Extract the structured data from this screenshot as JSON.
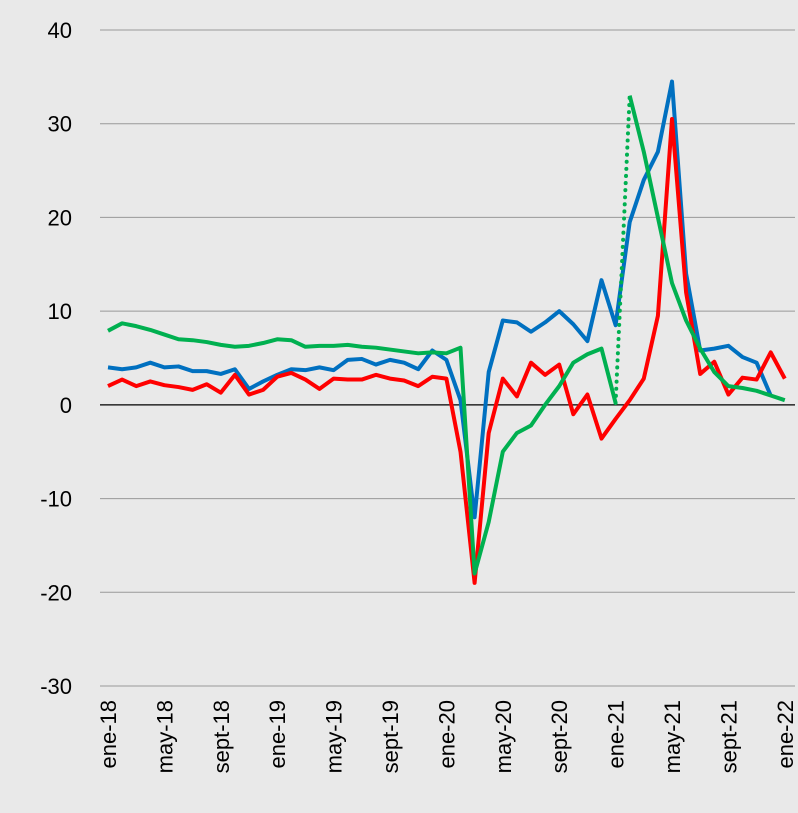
{
  "chart_data": {
    "type": "line",
    "categories": [
      "ene-18",
      null,
      null,
      null,
      "may-18",
      null,
      null,
      null,
      "sept-18",
      null,
      null,
      null,
      "ene-19",
      null,
      null,
      null,
      "may-19",
      null,
      null,
      null,
      "sept-19",
      null,
      null,
      null,
      "ene-20",
      null,
      null,
      null,
      "may-20",
      null,
      null,
      null,
      "sept-20",
      null,
      null,
      null,
      "ene-21",
      null,
      null,
      null,
      "may-21",
      null,
      null,
      null,
      "sept-21",
      null,
      null,
      null,
      "ene-22"
    ],
    "series": [
      {
        "color": "#0070c0",
        "style": "solid",
        "values": [
          4,
          3.8,
          4,
          4.5,
          4,
          4.1,
          3.6,
          3.6,
          3.3,
          3.8,
          1.7,
          2.5,
          3.2,
          3.8,
          3.7,
          4,
          3.7,
          4.8,
          4.9,
          4.3,
          4.8,
          4.5,
          3.8,
          5.8,
          4.8,
          0.5,
          -12,
          3.5,
          9,
          8.8,
          7.8,
          8.8,
          10,
          8.6,
          6.8,
          13.3,
          8.5,
          19.5,
          24,
          27,
          34.5,
          14,
          5.8,
          6,
          6.3,
          5.1,
          4.5,
          1,
          null
        ]
      },
      {
        "color": "#ff0000",
        "style": "solid",
        "values": [
          2,
          2.7,
          2,
          2.5,
          2.1,
          1.9,
          1.6,
          2.2,
          1.3,
          3.2,
          1.1,
          1.6,
          3,
          3.4,
          2.7,
          1.7,
          2.8,
          2.7,
          2.7,
          3.2,
          2.8,
          2.6,
          2,
          3,
          2.8,
          -5,
          -19,
          -3,
          2.8,
          0.9,
          4.5,
          3.2,
          4.3,
          -1,
          1.1,
          -3.6,
          -1.5,
          0.5,
          2.8,
          9.5,
          30.5,
          12,
          3.3,
          4.6,
          1.1,
          2.9,
          2.7,
          5.6,
          2.8
        ]
      },
      {
        "color": "#00b050",
        "style": "solid",
        "values": [
          7.9,
          8.7,
          8.4,
          8,
          7.5,
          7,
          6.9,
          6.7,
          6.4,
          6.2,
          6.3,
          6.6,
          7,
          6.9,
          6.2,
          6.3,
          6.3,
          6.4,
          6.2,
          6.1,
          5.9,
          5.7,
          5.5,
          5.6,
          5.5,
          6.1,
          -18,
          -12.5,
          -5,
          -3,
          -2.2,
          0,
          2,
          4.5,
          5.4,
          6,
          0.2,
          null,
          null,
          null,
          null,
          null,
          null,
          null,
          null,
          null,
          null,
          null,
          null
        ]
      },
      {
        "color": "#00b050",
        "style": "dotted",
        "values": [
          null,
          null,
          null,
          null,
          null,
          null,
          null,
          null,
          null,
          null,
          null,
          null,
          null,
          null,
          null,
          null,
          null,
          null,
          null,
          null,
          null,
          null,
          null,
          null,
          null,
          null,
          null,
          null,
          null,
          null,
          null,
          null,
          null,
          null,
          null,
          null,
          0.2,
          33,
          null,
          null,
          null,
          null,
          null,
          null,
          null,
          null,
          null,
          null,
          null
        ]
      },
      {
        "color": "#00b050",
        "style": "solid",
        "values": [
          null,
          null,
          null,
          null,
          null,
          null,
          null,
          null,
          null,
          null,
          null,
          null,
          null,
          null,
          null,
          null,
          null,
          null,
          null,
          null,
          null,
          null,
          null,
          null,
          null,
          null,
          null,
          null,
          null,
          null,
          null,
          null,
          null,
          null,
          null,
          null,
          null,
          33,
          27,
          20,
          13,
          9,
          6,
          3.5,
          2,
          1.8,
          1.5,
          1,
          0.5
        ]
      }
    ],
    "ylim": [
      -30,
      40
    ],
    "yticks": [
      -30,
      -20,
      -10,
      0,
      10,
      20,
      30,
      40
    ],
    "grid": true
  }
}
